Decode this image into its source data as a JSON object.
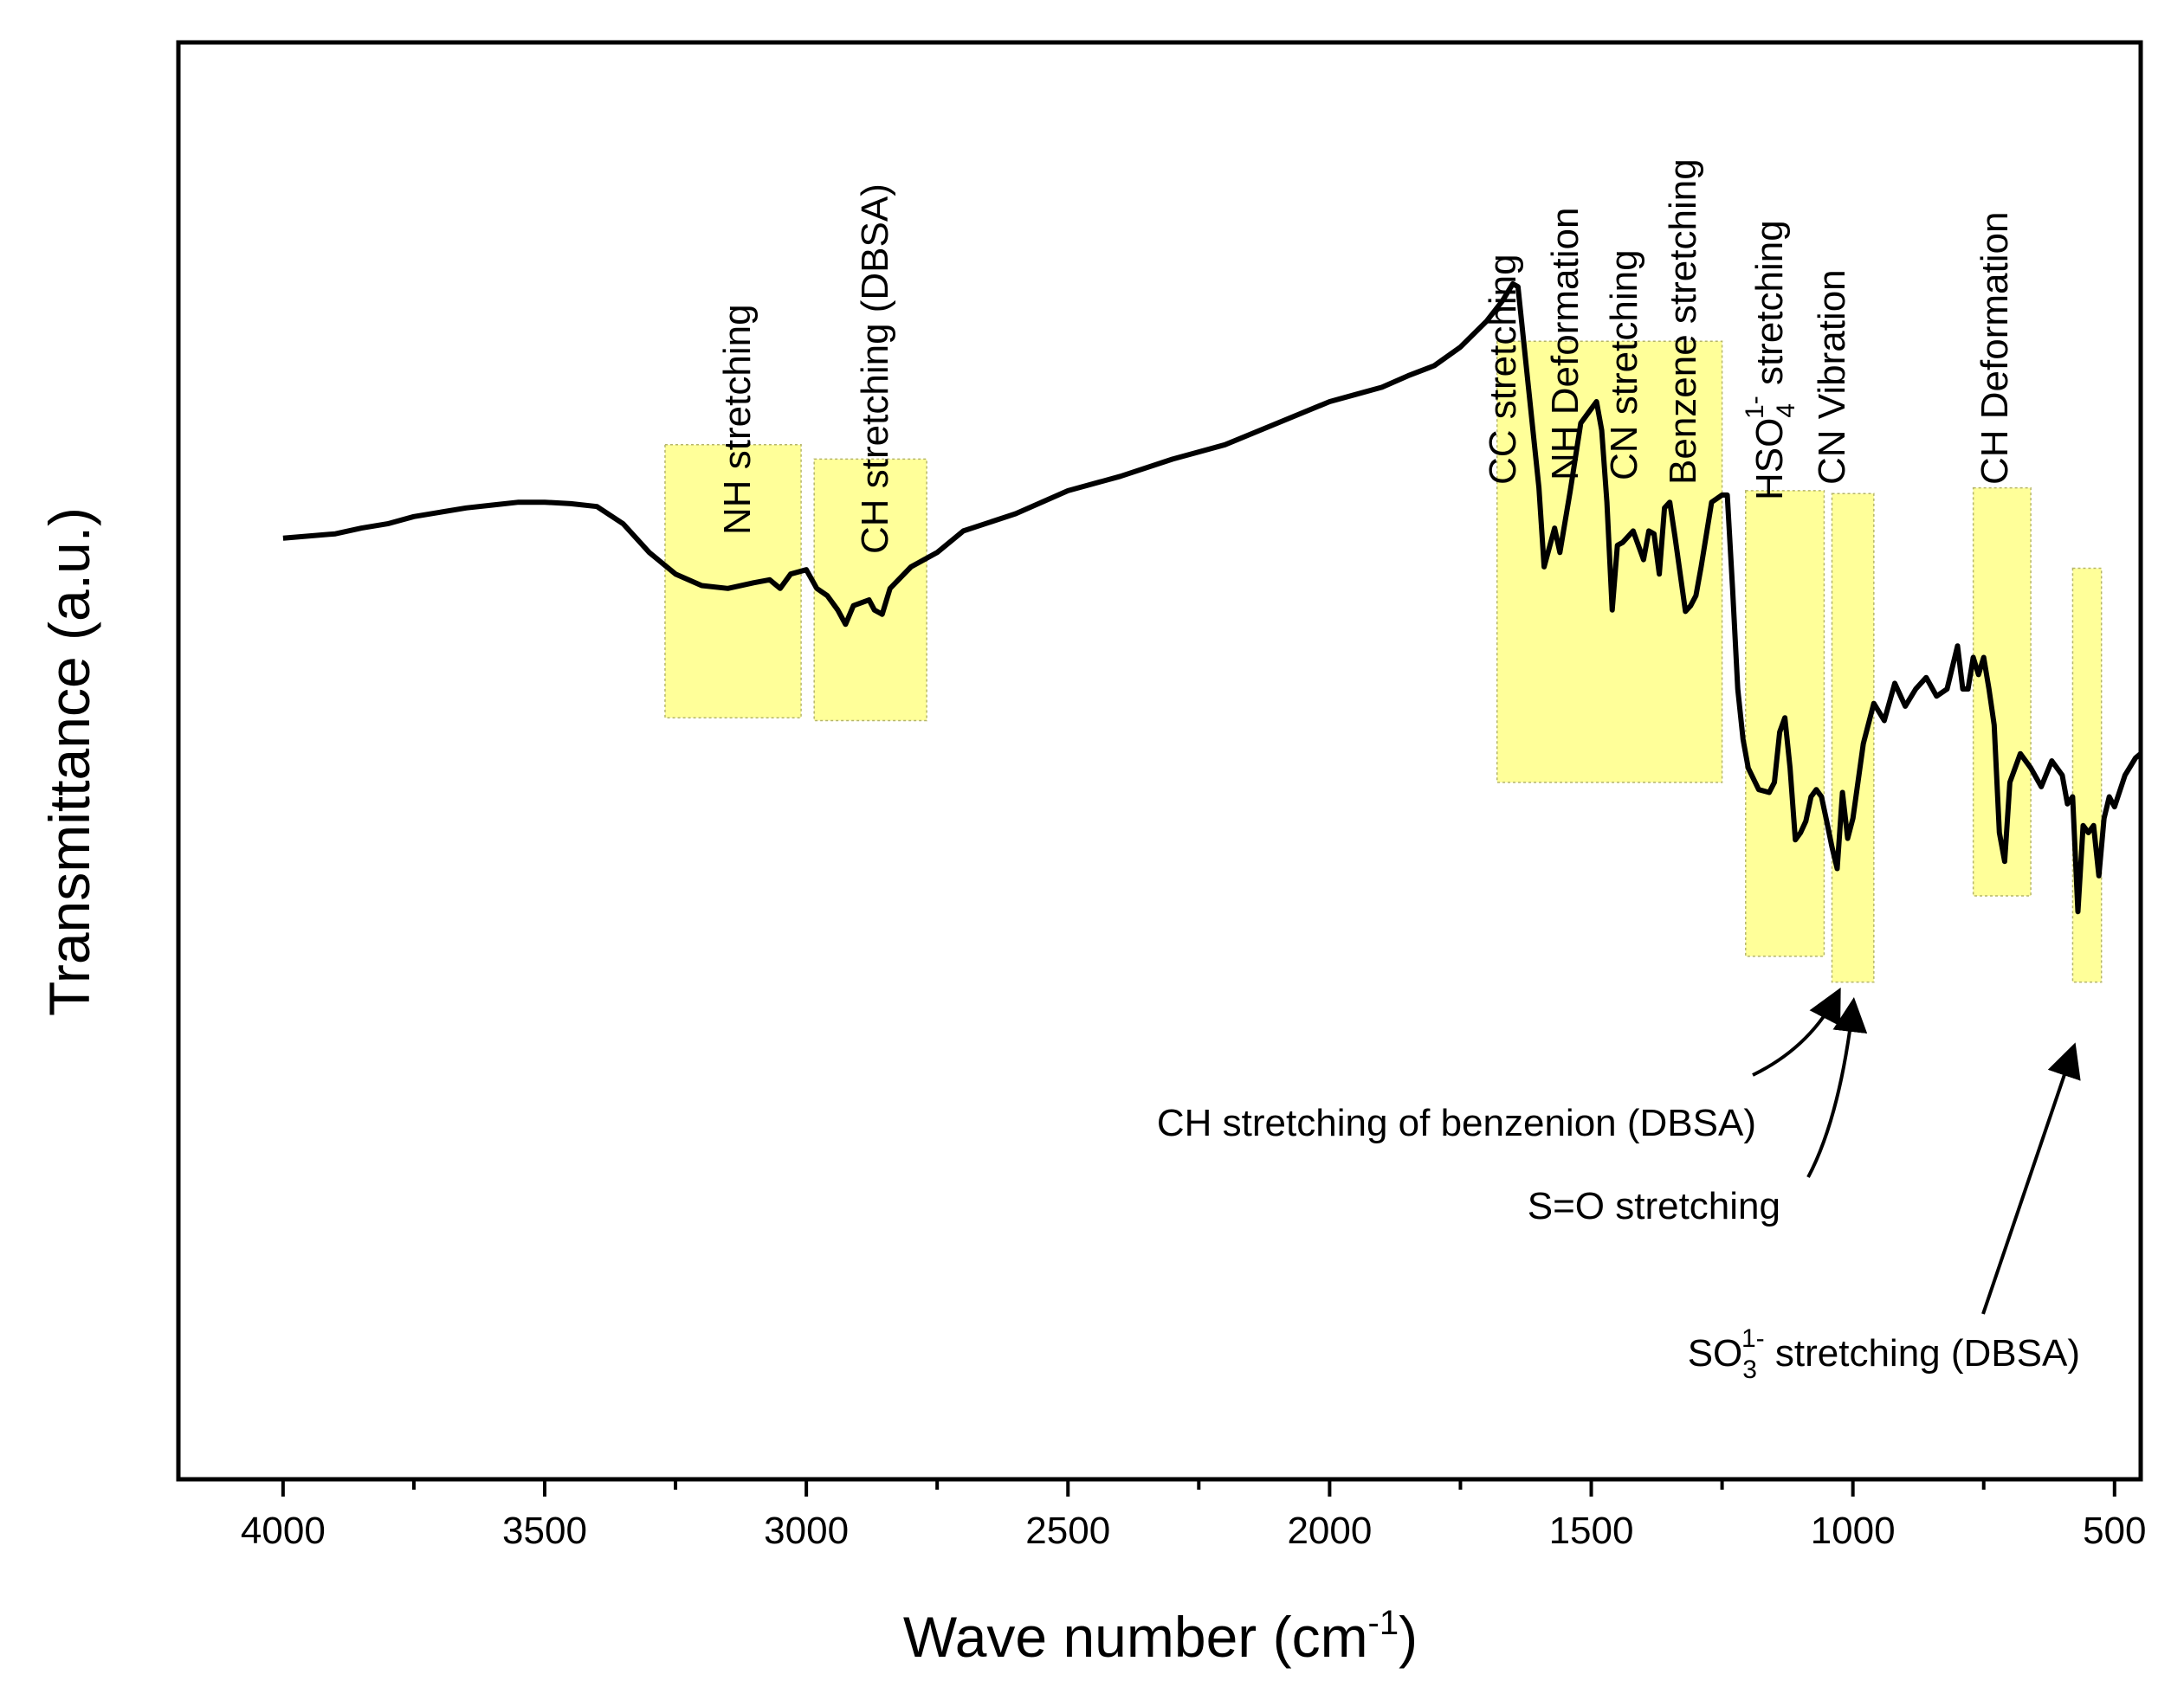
{
  "chart_data": {
    "type": "line",
    "xlabel": "Wave number (cm",
    "xlabel_sup": "-1",
    "xlabel_end": ")",
    "ylabel": "Transmittance (a.u.)",
    "xlim": [
      4200,
      450
    ],
    "x_reversed": true,
    "ylim": [
      0,
      10
    ],
    "y_ticks_shown": false,
    "grid": false,
    "x_ticks": [
      "4000",
      "3500",
      "3000",
      "2500",
      "2000",
      "1500",
      "1000",
      "500"
    ],
    "x_tick_values": [
      4000,
      3500,
      3000,
      2500,
      2000,
      1500,
      1000,
      500
    ],
    "highlight_color": "#ffff99",
    "line_color": "#000000",
    "series": [
      {
        "x": [
          4000,
          3900,
          3850,
          3800,
          3750,
          3700,
          3650,
          3600,
          3550,
          3500,
          3450,
          3400,
          3350,
          3300,
          3250,
          3200,
          3150,
          3100,
          3070,
          3050,
          3030,
          3000,
          2980,
          2960,
          2940,
          2925,
          2910,
          2880,
          2870,
          2855,
          2840,
          2800,
          2750,
          2700,
          2600,
          2500,
          2400,
          2300,
          2200,
          2100,
          2000,
          1950,
          1900,
          1850,
          1800,
          1750,
          1700,
          1670,
          1650,
          1640,
          1620,
          1600,
          1590,
          1570,
          1560,
          1540,
          1520,
          1500,
          1490,
          1480,
          1470,
          1460,
          1450,
          1440,
          1420,
          1400,
          1390,
          1380,
          1370,
          1360,
          1350,
          1340,
          1320,
          1310,
          1300,
          1290,
          1270,
          1250,
          1240,
          1230,
          1220,
          1210,
          1200,
          1180,
          1160,
          1150,
          1140,
          1130,
          1120,
          1110,
          1100,
          1090,
          1080,
          1070,
          1060,
          1050,
          1040,
          1030,
          1020,
          1010,
          1000,
          980,
          960,
          940,
          920,
          900,
          880,
          860,
          840,
          820,
          800,
          790,
          780,
          770,
          760,
          750,
          740,
          730,
          720,
          710,
          700,
          680,
          660,
          640,
          620,
          600,
          590,
          580,
          570,
          560,
          550,
          540,
          530,
          520,
          510,
          500,
          480,
          460,
          450
        ],
        "y": [
          6.55,
          6.58,
          6.62,
          6.65,
          6.7,
          6.73,
          6.76,
          6.78,
          6.8,
          6.8,
          6.79,
          6.77,
          6.65,
          6.45,
          6.3,
          6.22,
          6.2,
          6.24,
          6.26,
          6.2,
          6.3,
          6.33,
          6.2,
          6.15,
          6.05,
          5.95,
          6.08,
          6.12,
          6.05,
          6.02,
          6.2,
          6.35,
          6.45,
          6.6,
          6.72,
          6.88,
          6.98,
          7.1,
          7.2,
          7.35,
          7.5,
          7.55,
          7.6,
          7.68,
          7.75,
          7.88,
          8.06,
          8.2,
          8.32,
          8.3,
          7.6,
          6.9,
          6.35,
          6.62,
          6.45,
          6.88,
          7.35,
          7.45,
          7.5,
          7.3,
          6.8,
          6.05,
          6.5,
          6.52,
          6.6,
          6.4,
          6.6,
          6.58,
          6.3,
          6.76,
          6.8,
          6.56,
          6.04,
          6.08,
          6.15,
          6.35,
          6.8,
          6.85,
          6.85,
          6.2,
          5.5,
          5.15,
          4.95,
          4.8,
          4.78,
          4.85,
          5.2,
          5.3,
          4.95,
          4.45,
          4.5,
          4.58,
          4.75,
          4.8,
          4.75,
          4.58,
          4.4,
          4.25,
          4.78,
          4.46,
          4.6,
          5.12,
          5.4,
          5.28,
          5.54,
          5.38,
          5.5,
          5.58,
          5.45,
          5.5,
          5.8,
          5.5,
          5.5,
          5.72,
          5.6,
          5.72,
          5.5,
          5.25,
          4.5,
          4.3,
          4.85,
          5.05,
          4.95,
          4.82,
          5.0,
          4.9,
          4.7,
          4.75,
          3.95,
          4.55,
          4.5,
          4.55,
          4.2,
          4.6,
          4.75,
          4.68,
          4.9,
          5.02,
          5.05
        ]
      }
    ],
    "highlights": [
      {
        "x_from": 3270,
        "x_to": 3010,
        "y_from": 5.3,
        "y_to": 7.2
      },
      {
        "x_from": 2985,
        "x_to": 2770,
        "y_from": 5.28,
        "y_to": 7.1
      },
      {
        "x_from": 1680,
        "x_to": 1250,
        "y_from": 4.85,
        "y_to": 7.92
      },
      {
        "x_from": 1205,
        "x_to": 1055,
        "y_from": 3.64,
        "y_to": 6.88
      },
      {
        "x_from": 1040,
        "x_to": 960,
        "y_from": 3.46,
        "y_to": 6.86
      },
      {
        "x_from": 770,
        "x_to": 660,
        "y_from": 4.06,
        "y_to": 6.9
      },
      {
        "x_from": 580,
        "x_to": 525,
        "y_from": 3.46,
        "y_to": 6.34
      }
    ],
    "annotations": [
      {
        "id": "nh-stretching",
        "lines": [
          "NH stretching"
        ],
        "x": 3100,
        "y": 7.25,
        "rotate": true
      },
      {
        "id": "ch-stretching-dbsa",
        "lines": [
          "CH stretching (DBSA)"
        ],
        "x": 2860,
        "y": 7.15,
        "rotate": true
      },
      {
        "id": "band-group-1",
        "lines": [
          "CC stretching",
          "NH Deformation",
          "CN stretching",
          "Benzene stretching"
        ],
        "x": 1470,
        "y": 7.95,
        "rotate": true
      },
      {
        "id": "band-group-2",
        "lines": [
          "HSO",
          "CN Vibration"
        ],
        "x": 1140,
        "y": 6.9,
        "rotate": true
      },
      {
        "id": "ch-deformation",
        "lines": [
          "CH Deformation"
        ],
        "x": 720,
        "y": 6.92,
        "rotate": true
      }
    ],
    "hso4_label": {
      "base": "HSO",
      "sub": "4",
      "sup": "1-",
      "rest": " stretching"
    },
    "arrow_labels": [
      {
        "id": "ch-benzenion",
        "text": "CH stretching of benzenion (DBSA)"
      },
      {
        "id": "s-o",
        "text": "S=O stretching"
      },
      {
        "id": "so3",
        "base": "SO",
        "sub": "3",
        "sup": "1-",
        "rest": " stretching (DBSA)"
      }
    ]
  }
}
